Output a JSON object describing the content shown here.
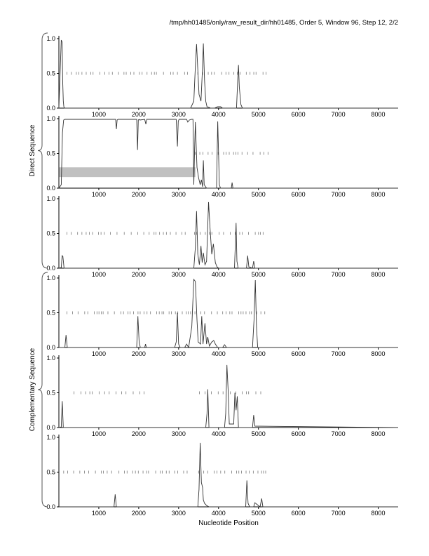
{
  "header": "/tmp/hh01485/only/raw_result_dir/hh01485, Order 5, Window 96, Step 12, 2/2",
  "x_axis_title": "Nucleotide Position",
  "group_labels": [
    "Direct Sequence",
    "Complementary Sequence"
  ],
  "chart_data": [
    {
      "type": "line",
      "group": "Direct Sequence",
      "xlim": [
        0,
        8500
      ],
      "ylim": [
        0,
        1
      ],
      "xticks": [
        1000,
        2000,
        3000,
        4000,
        5000,
        6000,
        7000,
        8000
      ],
      "yticks": [
        0.0,
        0.5,
        1.0
      ],
      "ytick_labels": [
        "0.0",
        "0.5",
        "1.0"
      ],
      "series": [
        {
          "x": [
            0,
            60,
            80,
            95,
            110,
            125,
            140,
            3300,
            3380,
            3420,
            3450,
            3480,
            3510,
            3560,
            3600,
            3620,
            3650,
            3680,
            3710,
            3760,
            3800,
            3900,
            3980,
            4050,
            4100,
            4450,
            4480,
            4500,
            4520,
            4560,
            4600,
            8500
          ],
          "y": [
            0,
            0.98,
            0.95,
            0.4,
            0.1,
            0.02,
            0,
            0,
            0.1,
            0.6,
            0.92,
            0.55,
            0.2,
            0.1,
            0.6,
            0.93,
            0.4,
            0.1,
            0.02,
            0.01,
            0,
            0,
            0.02,
            0.02,
            0,
            0,
            0.4,
            0.62,
            0.3,
            0.05,
            0,
            0
          ]
        }
      ],
      "marker_rows": [
        {
          "y": 0.5,
          "ranges": [
            [
              200,
              3250
            ],
            [
              3480,
              5250
            ]
          ]
        }
      ]
    },
    {
      "type": "line",
      "group": "Direct Sequence",
      "xlim": [
        0,
        8500
      ],
      "ylim": [
        0,
        1
      ],
      "xticks": [
        1000,
        2000,
        3000,
        4000,
        5000,
        6000,
        7000,
        8000
      ],
      "yticks": [
        0.0,
        0.5,
        1.0
      ],
      "ytick_labels": [
        "0.0",
        "0.5",
        "1.0"
      ],
      "series": [
        {
          "x": [
            0,
            60,
            90,
            120,
            150,
            1420,
            1440,
            1460,
            1480,
            1950,
            1970,
            1990,
            2010,
            2030,
            2150,
            2180,
            2200,
            2940,
            2970,
            2990,
            3010,
            3050,
            3200,
            3230,
            3270,
            3320,
            3360,
            3380,
            3400,
            3420,
            3460,
            3500,
            3540,
            3570,
            3600,
            3620,
            3640,
            3700,
            3950,
            3980,
            4000,
            4020,
            4050,
            4320,
            4340,
            4360,
            8500
          ],
          "y": [
            0,
            0.05,
            0.8,
            0.98,
            0.99,
            0.99,
            0.85,
            0.98,
            0.99,
            0.99,
            0.55,
            0.98,
            0.99,
            0.98,
            0.99,
            0.92,
            0.99,
            0.99,
            0.6,
            0.96,
            0.99,
            0.99,
            0.99,
            0.95,
            0.98,
            0.99,
            0.99,
            0.05,
            0.55,
            0.95,
            0.3,
            0.15,
            0.05,
            0.12,
            0.02,
            0.4,
            0.05,
            0,
            0,
            0.96,
            0.5,
            0.05,
            0,
            0,
            0.08,
            0,
            0
          ]
        }
      ],
      "marker_rows": [
        {
          "y": 0.5,
          "ranges": [
            [
              3420,
              5250
            ]
          ]
        }
      ],
      "band": {
        "x": [
          0,
          3420
        ],
        "y": [
          0.16,
          0.3
        ],
        "color": "#c0c0c0"
      }
    },
    {
      "type": "line",
      "group": "Direct Sequence",
      "xlim": [
        0,
        8500
      ],
      "ylim": [
        0,
        1
      ],
      "xticks": [
        1000,
        2000,
        3000,
        4000,
        5000,
        6000,
        7000,
        8000
      ],
      "yticks": [
        0.0,
        0.5,
        1.0
      ],
      "ytick_labels": [
        "0.0",
        "0.5",
        "1.0"
      ],
      "series": [
        {
          "x": [
            0,
            60,
            80,
            100,
            130,
            3380,
            3420,
            3450,
            3480,
            3520,
            3560,
            3590,
            3620,
            3660,
            3700,
            3750,
            3790,
            3830,
            3870,
            3920,
            3960,
            4000,
            4400,
            4440,
            4460,
            4490,
            4700,
            4730,
            4760,
            4850,
            4880,
            4910,
            8500
          ],
          "y": [
            0,
            0.01,
            0.18,
            0.17,
            0,
            0,
            0.3,
            0.82,
            0.2,
            0.05,
            0.32,
            0.08,
            0.22,
            0.05,
            0.1,
            0.95,
            0.55,
            0.2,
            0.35,
            0.08,
            0.02,
            0,
            0,
            0.65,
            0.1,
            0,
            0,
            0.18,
            0.02,
            0,
            0.1,
            0,
            0
          ]
        }
      ],
      "marker_rows": [
        {
          "y": 0.5,
          "ranges": [
            [
              200,
              3250
            ],
            [
              3400,
              5250
            ]
          ]
        }
      ]
    },
    {
      "type": "line",
      "group": "Complementary Sequence",
      "xlim": [
        0,
        8500
      ],
      "ylim": [
        0,
        1
      ],
      "xticks": [
        1000,
        2000,
        3000,
        4000,
        5000,
        6000,
        7000,
        8000
      ],
      "yticks": [
        0.0,
        0.5,
        1.0
      ],
      "ytick_labels": [
        "0.0",
        "0.5",
        "1.0"
      ],
      "series": [
        {
          "x": [
            0,
            150,
            180,
            210,
            1950,
            1980,
            2010,
            2040,
            2150,
            2170,
            2190,
            2900,
            2940,
            2970,
            3000,
            3040,
            3150,
            3200,
            3250,
            3330,
            3380,
            3420,
            3460,
            3490,
            3550,
            3580,
            3610,
            3660,
            3700,
            3730,
            3770,
            3830,
            3880,
            3920,
            3980,
            4100,
            4150,
            4200,
            4850,
            4890,
            4920,
            4950,
            4980,
            8500
          ],
          "y": [
            0,
            0,
            0.18,
            0,
            0,
            0.45,
            0.08,
            0,
            0,
            0.05,
            0,
            0,
            0.08,
            0.5,
            0.05,
            0,
            0,
            0.05,
            0,
            0.3,
            0.98,
            0.95,
            0.4,
            0.08,
            0.05,
            0.45,
            0.05,
            0.35,
            0.05,
            0.15,
            0.02,
            0.08,
            0.1,
            0.05,
            0,
            0,
            0.04,
            0,
            0,
            0.4,
            0.97,
            0.3,
            0,
            0
          ]
        }
      ],
      "marker_rows": [
        {
          "y": 0.5,
          "ranges": [
            [
              200,
              3250
            ],
            [
              3300,
              5250
            ]
          ]
        }
      ]
    },
    {
      "type": "line",
      "group": "Complementary Sequence",
      "xlim": [
        0,
        8500
      ],
      "ylim": [
        0,
        1
      ],
      "xticks": [
        1000,
        2000,
        3000,
        4000,
        5000,
        6000,
        7000,
        8000
      ],
      "yticks": [
        0.0,
        0.5,
        1.0
      ],
      "ytick_labels": [
        "0.0",
        "0.5",
        "1.0"
      ],
      "series": [
        {
          "x": [
            0,
            60,
            85,
            110,
            3680,
            3710,
            3730,
            3760,
            4150,
            4180,
            4210,
            4240,
            4270,
            4380,
            4410,
            4440,
            4470,
            4500,
            4850,
            4880,
            4910,
            8500
          ],
          "y": [
            0,
            0.01,
            0.38,
            0,
            0,
            0.2,
            0.55,
            0,
            0,
            0.2,
            0.9,
            0.55,
            0.05,
            0.05,
            0.5,
            0.25,
            0.45,
            0,
            0,
            0.18,
            0.02,
            0
          ]
        }
      ],
      "marker_rows": [
        {
          "y": 0.5,
          "ranges": [
            [
              380,
              2200
            ],
            [
              3520,
              5100
            ]
          ]
        }
      ]
    },
    {
      "type": "line",
      "group": "Complementary Sequence",
      "xlim": [
        0,
        8500
      ],
      "ylim": [
        0,
        1
      ],
      "xticks": [
        1000,
        2000,
        3000,
        4000,
        5000,
        6000,
        7000,
        8000
      ],
      "yticks": [
        0.0,
        0.5,
        1.0
      ],
      "ytick_labels": [
        "0.0",
        "0.5",
        "1.0"
      ],
      "series": [
        {
          "x": [
            0,
            1380,
            1410,
            1440,
            3480,
            3510,
            3540,
            3570,
            3600,
            3620,
            3650,
            3700,
            3760,
            4680,
            4710,
            4740,
            4780,
            4880,
            4910,
            5040,
            5080,
            5110,
            8500
          ],
          "y": [
            0,
            0,
            0.18,
            0,
            0,
            0.25,
            0.92,
            0.35,
            0.28,
            0.1,
            0.05,
            0.02,
            0,
            0,
            0.38,
            0.05,
            0,
            0,
            0.06,
            0,
            0.12,
            0,
            0
          ]
        }
      ],
      "marker_rows": [
        {
          "y": 0.5,
          "ranges": [
            [
              120,
              3250
            ],
            [
              3500,
              5200
            ]
          ]
        }
      ]
    }
  ]
}
